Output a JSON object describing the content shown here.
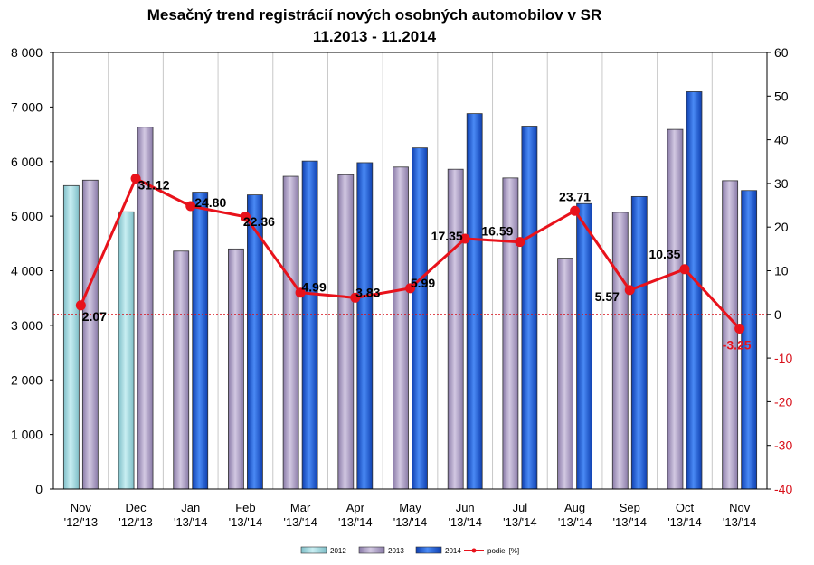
{
  "chart_data": {
    "type": "bar",
    "title": "Mesačný trend registrácií nových osobných automobilov  v SR",
    "subtitle": "11.2013 - 11.2014",
    "categories": [
      [
        "Nov",
        "'12/'13"
      ],
      [
        "Dec",
        "'12/'13"
      ],
      [
        "Jan",
        "'13/'14"
      ],
      [
        "Feb",
        "'13/'14"
      ],
      [
        "Mar",
        "'13/'14"
      ],
      [
        "Apr",
        "'13/'14"
      ],
      [
        "May",
        "'13/'14"
      ],
      [
        "Jun",
        "'13/'14"
      ],
      [
        "Jul",
        "'13/'14"
      ],
      [
        "Aug",
        "'13/'14"
      ],
      [
        "Sep",
        "'13/'14"
      ],
      [
        "Oct",
        "'13/'14"
      ],
      [
        "Nov",
        "'13/'14"
      ]
    ],
    "series": [
      {
        "name": "2012",
        "color": "#9fd8de",
        "values": [
          5560,
          5080,
          null,
          null,
          null,
          null,
          null,
          null,
          null,
          null,
          null,
          null,
          null
        ]
      },
      {
        "name": "2013",
        "color": "#b3a6c8",
        "values": [
          5660,
          6630,
          4360,
          4400,
          5730,
          5760,
          5900,
          5860,
          5700,
          4230,
          5070,
          6590,
          5650
        ]
      },
      {
        "name": "2014",
        "color": "#1f5fe0",
        "values": [
          null,
          null,
          5440,
          5390,
          6010,
          5980,
          6250,
          6880,
          6650,
          5230,
          5360,
          7280,
          5470
        ]
      },
      {
        "name": "podiel [%]",
        "type": "line",
        "axis": "right",
        "color": "#e8121b",
        "values": [
          2.07,
          31.12,
          24.8,
          22.36,
          4.99,
          3.83,
          5.99,
          17.35,
          16.59,
          23.71,
          5.57,
          10.35,
          -3.25
        ],
        "labels": [
          "2.07",
          "31.12",
          "24.80",
          "22.36",
          "4.99",
          "3.83",
          "5.99",
          "17.35",
          "16.59",
          "23.71",
          "5.57",
          "10.35",
          "-3.25"
        ]
      }
    ],
    "y_left": {
      "min": 0,
      "max": 8000,
      "step": 1000,
      "ticks": [
        "0",
        "1 000",
        "2 000",
        "3 000",
        "4 000",
        "5 000",
        "6 000",
        "7 000",
        "8 000"
      ]
    },
    "y_right": {
      "min": -40,
      "max": 60,
      "step": 10,
      "ticks": [
        "-40",
        "-30",
        "-20",
        "-10",
        "0",
        "10",
        "20",
        "30",
        "40",
        "50",
        "60"
      ]
    },
    "grid": "vertical",
    "legend_position": "bottom"
  }
}
